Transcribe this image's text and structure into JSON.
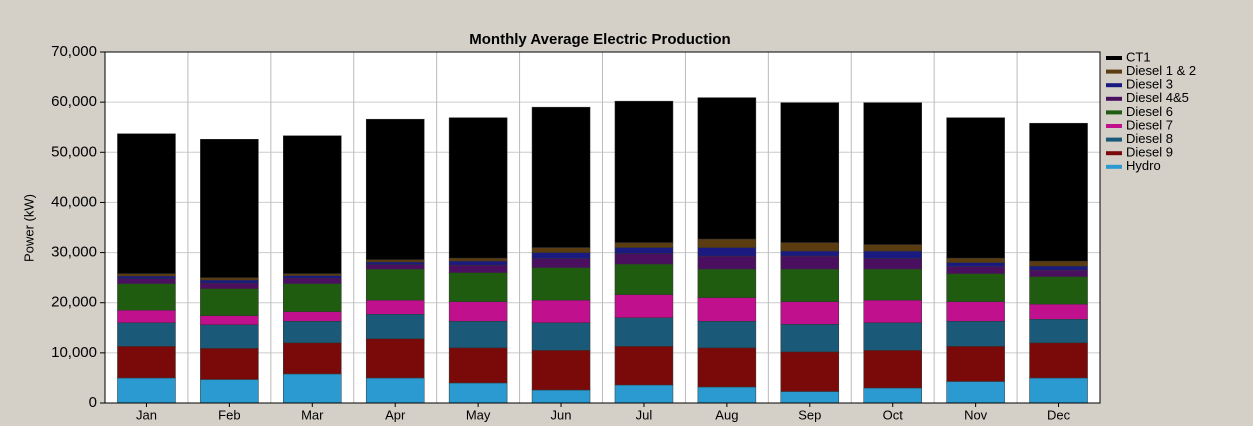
{
  "chart_data": {
    "type": "stacked-bar",
    "title": "Monthly Average Electric Production",
    "y_label": "Power (kW)",
    "categories": [
      "Jan",
      "Feb",
      "Mar",
      "Apr",
      "May",
      "Jun",
      "Jul",
      "Aug",
      "Sep",
      "Oct",
      "Nov",
      "Dec"
    ],
    "ylim": [
      0,
      70000
    ],
    "yticks": [
      0,
      {
        "value": 10000,
        "label": "10,000"
      },
      {
        "value": 20000,
        "label": "20,000"
      },
      {
        "value": 30000,
        "label": "30,000"
      },
      {
        "value": 40000,
        "label": "40,000"
      },
      {
        "value": 50000,
        "label": "50,000"
      },
      {
        "value": 60000,
        "label": "60,000"
      },
      {
        "value": 70000,
        "label": "70,000"
      }
    ],
    "grid": true,
    "legend": "right",
    "series": [
      {
        "name": "CT1",
        "color": "#000000",
        "values": [
          27900,
          27600,
          27500,
          28000,
          28000,
          28000,
          28200,
          28200,
          27900,
          28300,
          28000,
          27500
        ]
      },
      {
        "name": "Diesel 1 & 2",
        "color": "#5a3c10",
        "values": [
          500,
          500,
          400,
          500,
          600,
          1000,
          1000,
          1700,
          1700,
          1300,
          900,
          1000
        ]
      },
      {
        "name": "Diesel 3",
        "color": "#1a1a80",
        "values": [
          500,
          600,
          500,
          500,
          800,
          1200,
          1200,
          1700,
          1000,
          1500,
          800,
          800
        ]
      },
      {
        "name": "Diesel 4&5",
        "color": "#4b0f5f",
        "values": [
          1000,
          1100,
          1100,
          900,
          1500,
          1800,
          2100,
          2600,
          2600,
          2100,
          1400,
          1300
        ]
      },
      {
        "name": "Diesel 6",
        "color": "#1f5c10",
        "values": [
          5300,
          5400,
          5600,
          6200,
          5800,
          6500,
          6100,
          5700,
          6500,
          6200,
          5600,
          5500
        ]
      },
      {
        "name": "Diesel 7",
        "color": "#c0108e",
        "values": [
          2500,
          1800,
          1900,
          2800,
          3900,
          4500,
          4600,
          4700,
          4500,
          4500,
          3900,
          3000
        ]
      },
      {
        "name": "Diesel 8",
        "color": "#1a5a78",
        "values": [
          4700,
          4700,
          4300,
          4900,
          5300,
          5500,
          5700,
          5300,
          5500,
          5500,
          5000,
          4700
        ]
      },
      {
        "name": "Diesel 9",
        "color": "#7a0a0a",
        "values": [
          6300,
          6200,
          6200,
          7800,
          7000,
          7900,
          7700,
          7800,
          7900,
          7500,
          7000,
          7000
        ]
      },
      {
        "name": "Hydro",
        "color": "#2a9ad0",
        "values": [
          5000,
          4700,
          5800,
          5000,
          4000,
          2600,
          3600,
          3200,
          2300,
          3000,
          4300,
          5000
        ]
      }
    ]
  }
}
